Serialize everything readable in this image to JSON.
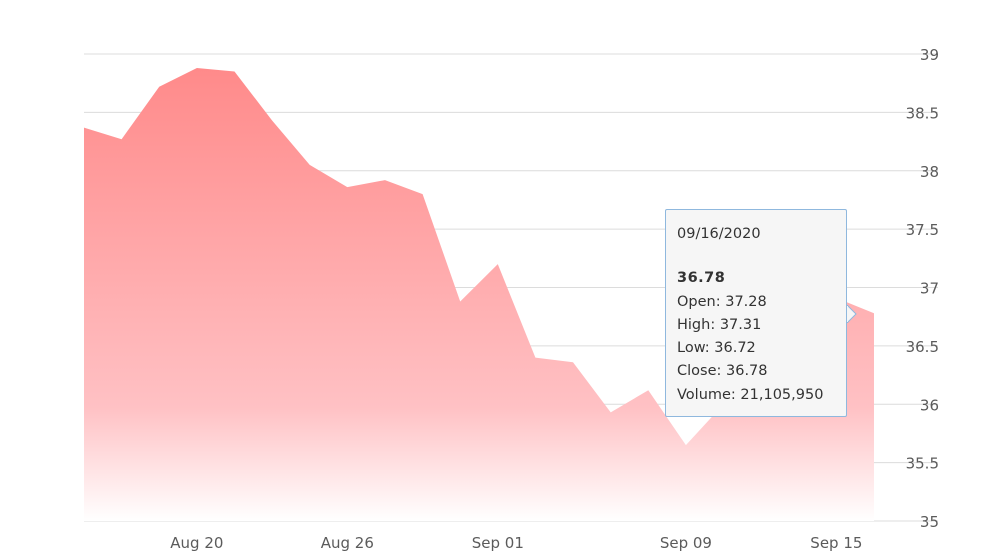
{
  "chart_data": {
    "type": "area",
    "x": [
      "08/17/2020",
      "08/18/2020",
      "08/19/2020",
      "08/20/2020",
      "08/21/2020",
      "08/24/2020",
      "08/25/2020",
      "08/26/2020",
      "08/27/2020",
      "08/28/2020",
      "08/31/2020",
      "09/01/2020",
      "09/02/2020",
      "09/03/2020",
      "09/04/2020",
      "09/08/2020",
      "09/09/2020",
      "09/10/2020",
      "09/11/2020",
      "09/14/2020",
      "09/15/2020",
      "09/16/2020"
    ],
    "values": [
      38.37,
      38.27,
      38.72,
      38.88,
      38.85,
      38.43,
      38.05,
      37.86,
      37.92,
      37.8,
      36.88,
      37.2,
      36.4,
      36.36,
      35.93,
      36.12,
      35.65,
      36.0,
      37.01,
      36.97,
      36.91,
      36.78
    ],
    "xticks": [
      {
        "label": "Aug 20",
        "index": 3
      },
      {
        "label": "Aug 26",
        "index": 7
      },
      {
        "label": "Sep 01",
        "index": 11
      },
      {
        "label": "Sep 09",
        "index": 16
      },
      {
        "label": "Sep 15",
        "index": 20
      }
    ],
    "yticks": [
      "35",
      "35.5",
      "36",
      "36.5",
      "37",
      "37.5",
      "38",
      "38.5",
      "39"
    ],
    "ylim": [
      35,
      39
    ],
    "y_axis_position": "right",
    "grid": true,
    "colors": {
      "fill_top": "#ff8a8a",
      "fill_bottom": "#ffffff",
      "grid": "#dcdcdc",
      "tooltip_border": "#8fb8de"
    },
    "tooltip": {
      "date": "09/16/2020",
      "price": "36.78",
      "rows": [
        "Open: 37.28",
        "High: 37.31",
        "Low: 36.72",
        "Close: 36.78",
        "Volume: 21,105,950"
      ]
    }
  }
}
